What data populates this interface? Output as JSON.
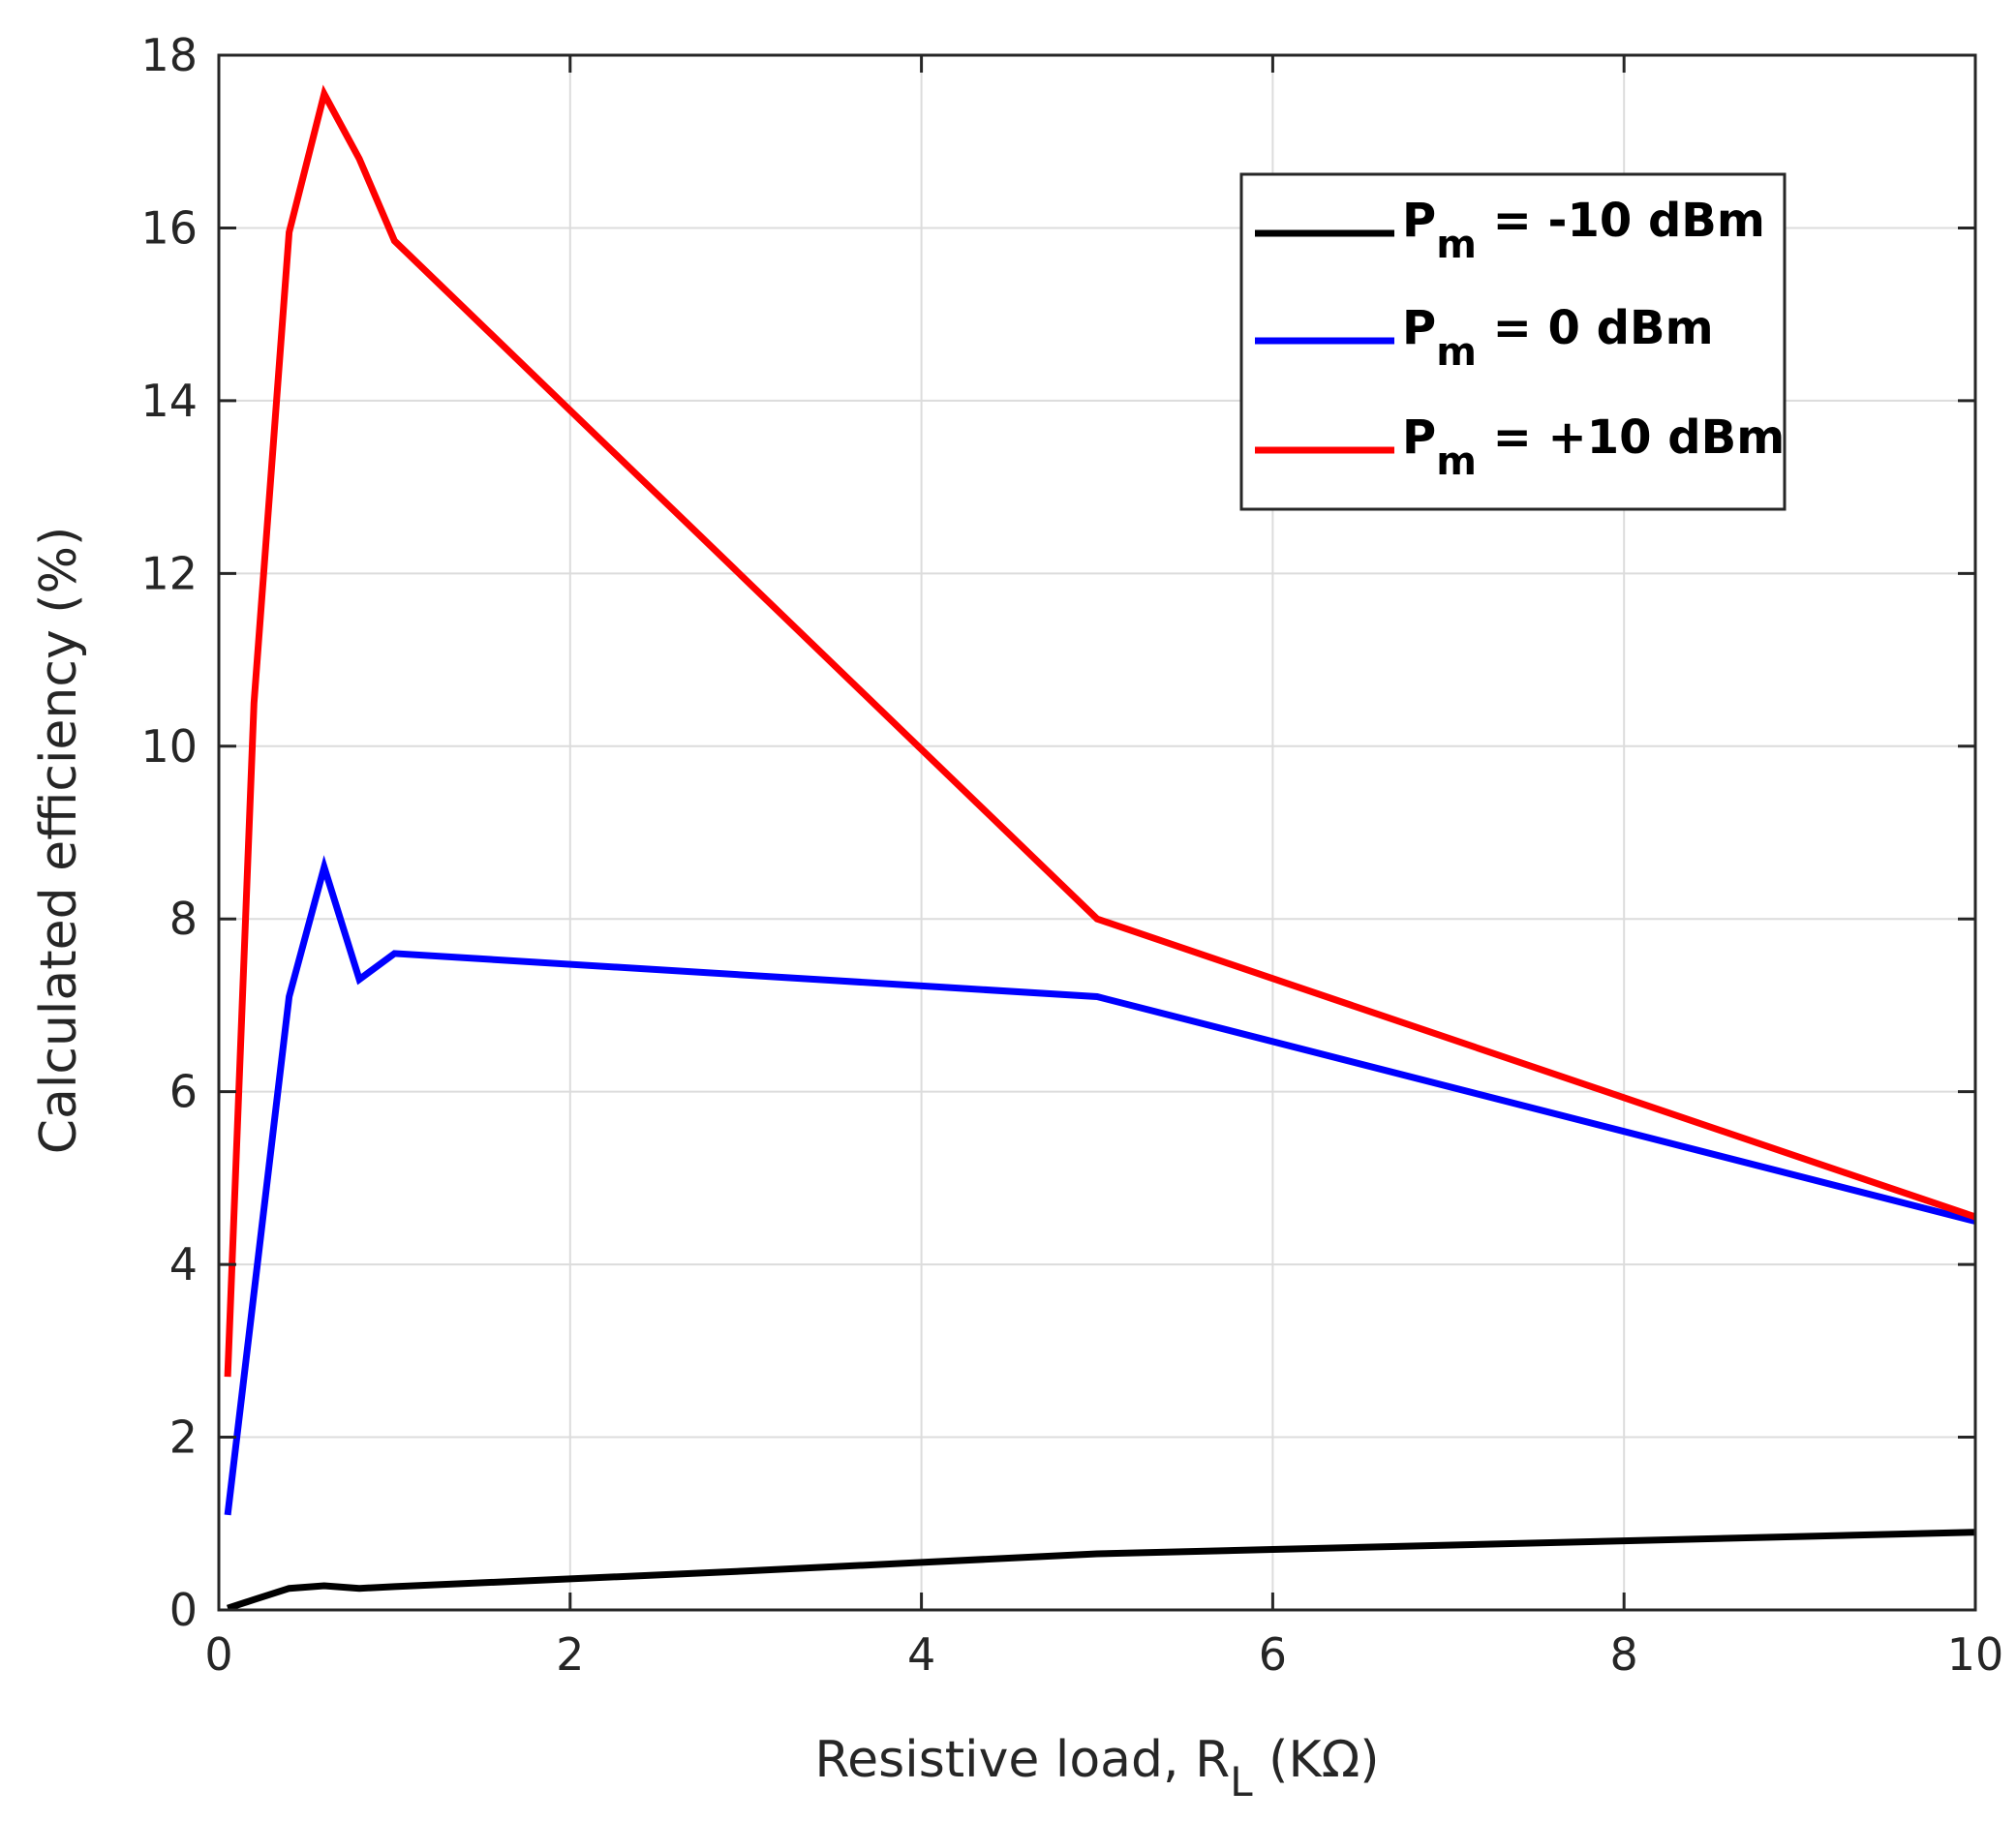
{
  "chart_data": {
    "type": "line",
    "title": "",
    "xlabel": "Resistive load, R",
    "xlabel_sub": "L",
    "xlabel_unit": " (KΩ)",
    "ylabel": "Calculated efficiency (%)",
    "xlim": [
      0,
      10
    ],
    "ylim": [
      0,
      18
    ],
    "xticks": [
      0,
      2,
      4,
      6,
      8,
      10
    ],
    "xtick_labels": [
      "0",
      "2",
      "4",
      "6",
      "8",
      "10"
    ],
    "yticks": [
      0,
      2,
      4,
      6,
      8,
      10,
      12,
      14,
      16,
      18
    ],
    "ytick_labels": [
      "0",
      "2",
      "4",
      "6",
      "8",
      "10",
      "12",
      "14",
      "16",
      "18"
    ],
    "grid": true,
    "legend_position": "top-right",
    "series": [
      {
        "name": "P",
        "name_sub": "m",
        "name_rest": " = -10 dBm",
        "color": "#000000",
        "x": [
          0.05,
          0.2,
          0.4,
          0.6,
          0.8,
          1,
          2,
          3,
          4,
          5,
          6,
          8,
          10
        ],
        "y": [
          0.02,
          0.12,
          0.25,
          0.28,
          0.25,
          0.27,
          0.36,
          0.45,
          0.55,
          0.65,
          0.7,
          0.8,
          0.9
        ]
      },
      {
        "name": "P",
        "name_sub": "m",
        "name_rest": " = 0 dBm",
        "color": "#0000ff",
        "x": [
          0.05,
          0.4,
          0.6,
          0.8,
          1,
          5,
          10
        ],
        "y": [
          1.1,
          7.1,
          8.6,
          7.3,
          7.6,
          7.1,
          4.5
        ]
      },
      {
        "name": "P",
        "name_sub": "m",
        "name_rest": " = +10 dBm",
        "color": "#ff0000",
        "x": [
          0.05,
          0.2,
          0.4,
          0.6,
          0.8,
          1,
          5,
          10
        ],
        "y": [
          2.7,
          10.5,
          15.95,
          17.55,
          16.8,
          15.85,
          8.0,
          4.55
        ]
      }
    ]
  }
}
